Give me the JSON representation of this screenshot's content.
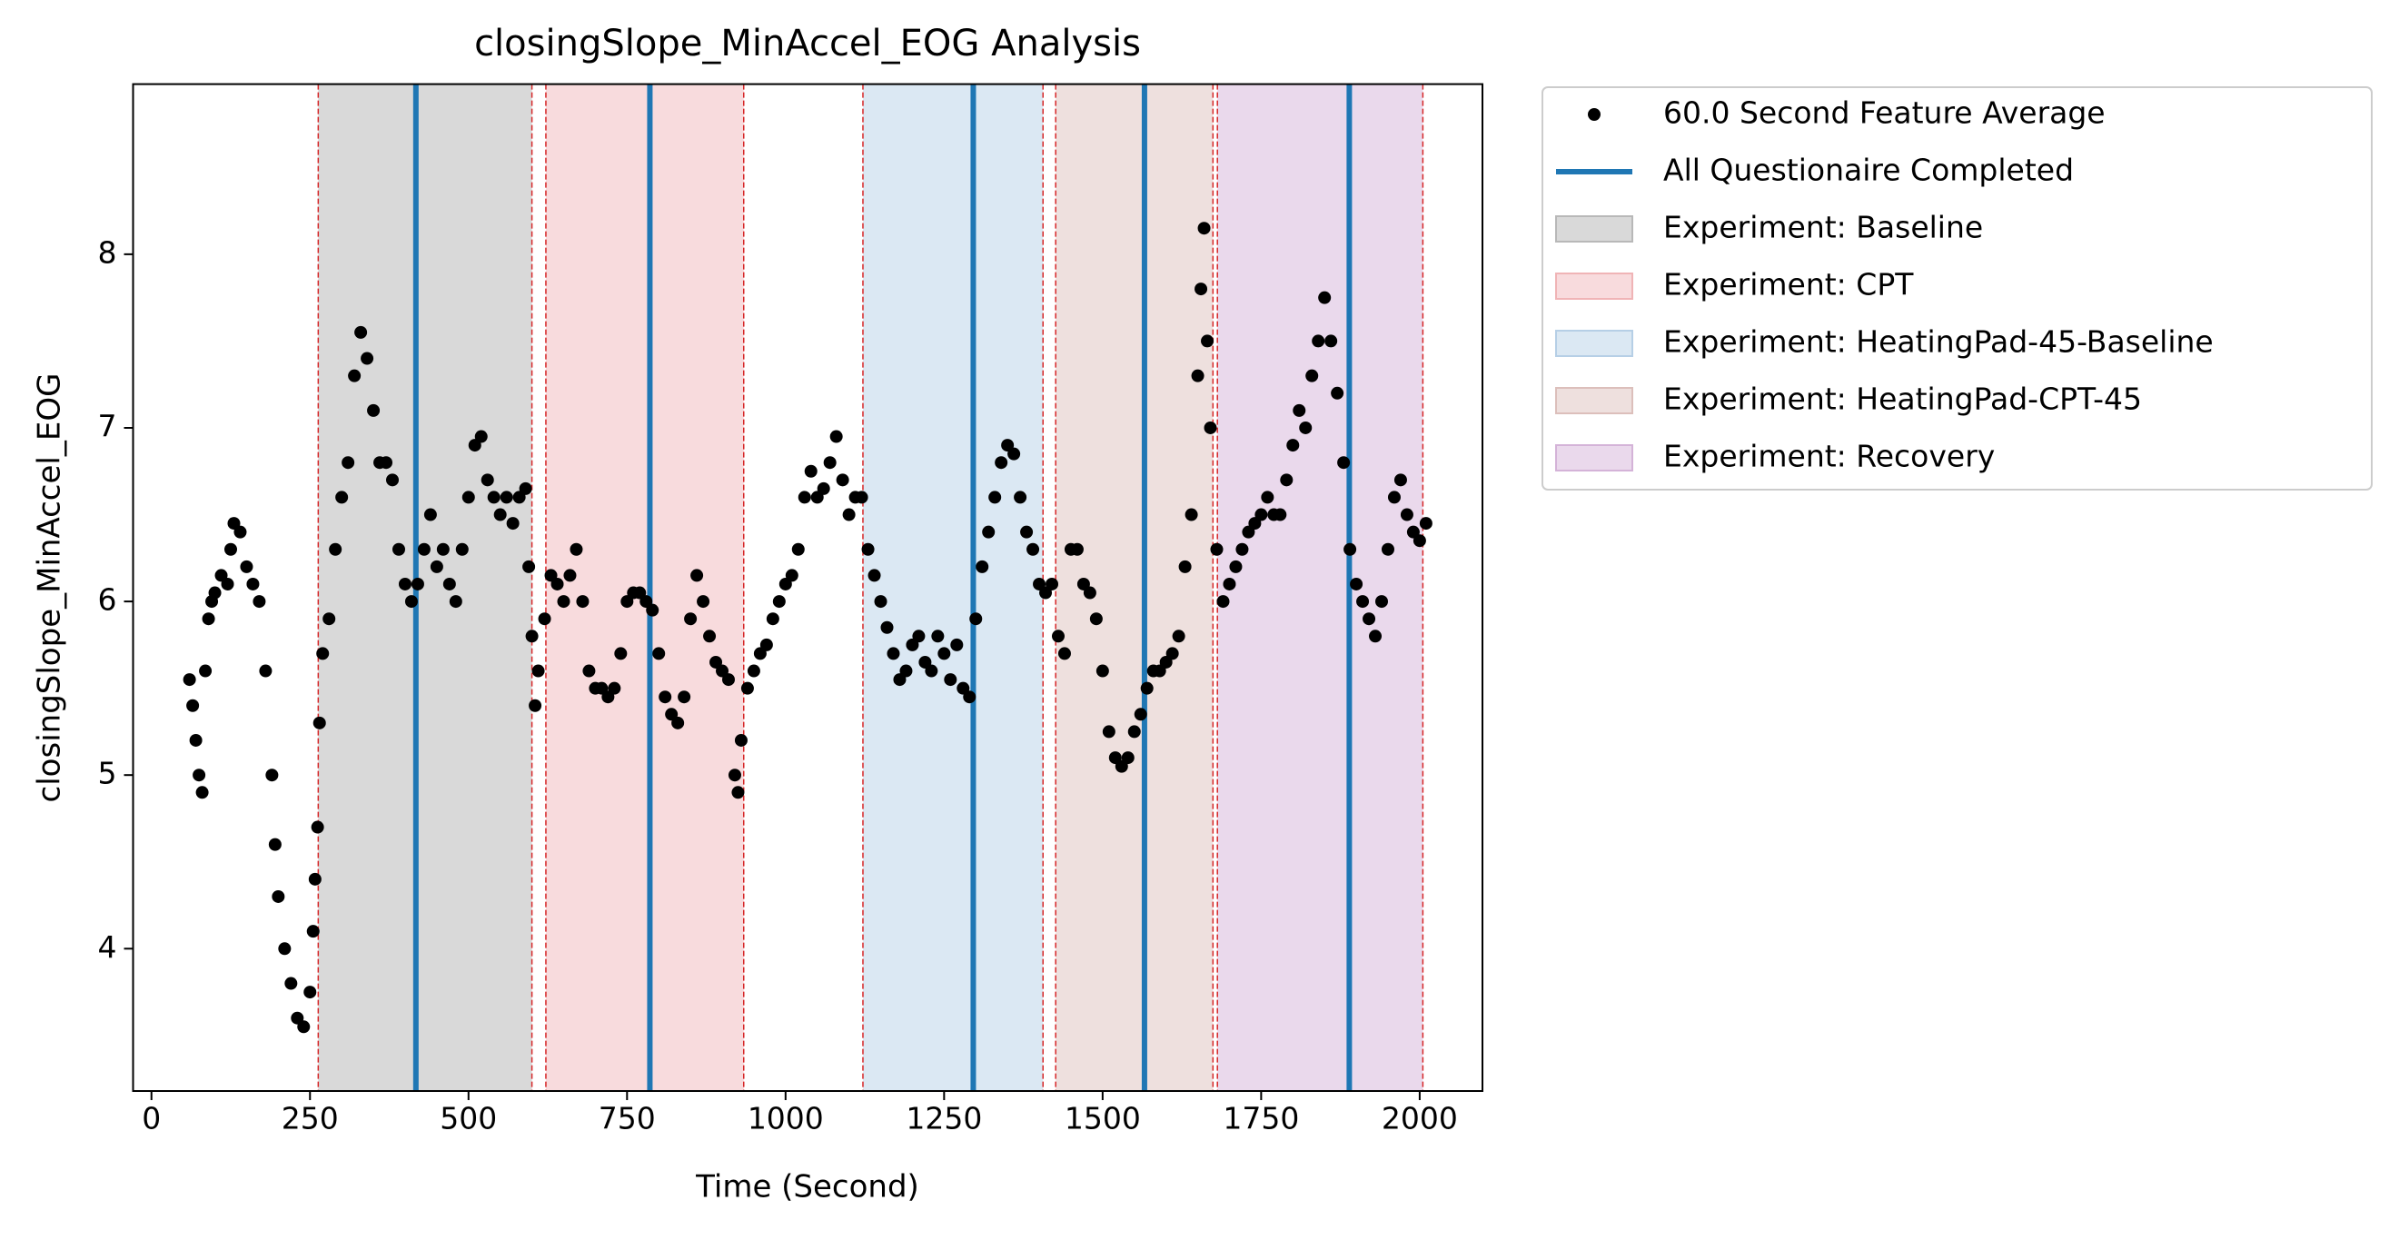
{
  "chart_data": {
    "type": "scatter",
    "title": "closingSlope_MinAccel_EOG Analysis",
    "xlabel": "Time (Second)",
    "ylabel": "closingSlope_MinAccel_EOG",
    "xlim": [
      -29,
      2099
    ],
    "ylim": [
      3.18,
      8.98
    ],
    "xticks": [
      0,
      250,
      500,
      750,
      1000,
      1250,
      1500,
      1750,
      2000
    ],
    "yticks": [
      4,
      5,
      6,
      7,
      8
    ],
    "legend": "outside-upper-right",
    "series": [
      {
        "name": "60.0 Second Feature Average",
        "color": "#000000",
        "x": [
          60,
          65,
          70,
          75,
          80,
          85,
          90,
          95,
          100,
          110,
          120,
          125,
          130,
          140,
          150,
          160,
          170,
          180,
          190,
          195,
          200,
          210,
          220,
          230,
          240,
          250,
          255,
          258,
          262,
          265,
          270,
          280,
          290,
          300,
          310,
          320,
          330,
          340,
          350,
          360,
          370,
          380,
          390,
          400,
          410,
          420,
          430,
          440,
          450,
          460,
          470,
          480,
          490,
          500,
          510,
          520,
          530,
          540,
          550,
          560,
          570,
          580,
          590,
          595,
          600,
          605,
          610,
          620,
          630,
          640,
          650,
          660,
          670,
          680,
          690,
          700,
          710,
          720,
          730,
          740,
          750,
          760,
          770,
          780,
          790,
          800,
          810,
          820,
          830,
          840,
          850,
          860,
          870,
          880,
          890,
          900,
          910,
          920,
          925,
          930,
          940,
          950,
          960,
          970,
          980,
          990,
          1000,
          1010,
          1020,
          1030,
          1040,
          1050,
          1060,
          1070,
          1080,
          1090,
          1100,
          1110,
          1120,
          1130,
          1140,
          1150,
          1160,
          1170,
          1180,
          1190,
          1200,
          1210,
          1220,
          1230,
          1240,
          1250,
          1260,
          1270,
          1280,
          1290,
          1300,
          1310,
          1320,
          1330,
          1340,
          1350,
          1360,
          1370,
          1380,
          1390,
          1400,
          1410,
          1420,
          1430,
          1440,
          1450,
          1460,
          1470,
          1480,
          1490,
          1500,
          1510,
          1520,
          1530,
          1540,
          1550,
          1560,
          1570,
          1580,
          1590,
          1600,
          1610,
          1620,
          1630,
          1640,
          1650,
          1655,
          1660,
          1665,
          1670,
          1680,
          1690,
          1700,
          1710,
          1720,
          1730,
          1740,
          1750,
          1760,
          1770,
          1780,
          1790,
          1800,
          1810,
          1820,
          1830,
          1840,
          1850,
          1860,
          1870,
          1880,
          1890,
          1900,
          1910,
          1920,
          1930,
          1940,
          1950,
          1960,
          1970,
          1980,
          1990,
          2000,
          2010
        ],
        "values": [
          5.55,
          5.4,
          5.2,
          5.0,
          4.9,
          5.6,
          5.9,
          6.0,
          6.05,
          6.15,
          6.1,
          6.3,
          6.45,
          6.4,
          6.2,
          6.1,
          6.0,
          5.6,
          5.0,
          4.6,
          4.3,
          4.0,
          3.8,
          3.6,
          3.55,
          3.75,
          4.1,
          4.4,
          4.7,
          5.3,
          5.7,
          5.9,
          6.3,
          6.6,
          6.8,
          7.3,
          7.55,
          7.4,
          7.1,
          6.8,
          6.8,
          6.7,
          6.3,
          6.1,
          6.0,
          6.1,
          6.3,
          6.5,
          6.2,
          6.3,
          6.1,
          6.0,
          6.3,
          6.6,
          6.9,
          6.95,
          6.7,
          6.6,
          6.5,
          6.6,
          6.45,
          6.6,
          6.65,
          6.2,
          5.8,
          5.4,
          5.6,
          5.9,
          6.15,
          6.1,
          6.0,
          6.15,
          6.3,
          6.0,
          5.6,
          5.5,
          5.5,
          5.45,
          5.5,
          5.7,
          6.0,
          6.05,
          6.05,
          6.0,
          5.95,
          5.7,
          5.45,
          5.35,
          5.3,
          5.45,
          5.9,
          6.15,
          6.0,
          5.8,
          5.65,
          5.6,
          5.55,
          5.0,
          4.9,
          5.2,
          5.5,
          5.6,
          5.7,
          5.75,
          5.9,
          6.0,
          6.1,
          6.15,
          6.3,
          6.6,
          6.75,
          6.6,
          6.65,
          6.8,
          6.95,
          6.7,
          6.5,
          6.6,
          6.6,
          6.3,
          6.15,
          6.0,
          5.85,
          5.7,
          5.55,
          5.6,
          5.75,
          5.8,
          5.65,
          5.6,
          5.8,
          5.7,
          5.55,
          5.75,
          5.5,
          5.45,
          5.9,
          6.2,
          6.4,
          6.6,
          6.8,
          6.9,
          6.85,
          6.6,
          6.4,
          6.3,
          6.1,
          6.05,
          6.1,
          5.8,
          5.7,
          6.3,
          6.3,
          6.1,
          6.05,
          5.9,
          5.6,
          5.25,
          5.1,
          5.05,
          5.1,
          5.25,
          5.35,
          5.5,
          5.6,
          5.6,
          5.65,
          5.7,
          5.8,
          6.2,
          6.5,
          7.3,
          7.8,
          8.15,
          7.5,
          7.0,
          6.3,
          6.0,
          6.1,
          6.2,
          6.3,
          6.4,
          6.45,
          6.5,
          6.6,
          6.5,
          6.5,
          6.7,
          6.9,
          7.1,
          7.0,
          7.3,
          7.5,
          7.75,
          7.5,
          7.2,
          6.8,
          6.3,
          6.1,
          6.0,
          5.9,
          5.8,
          6.0,
          6.3,
          6.6,
          6.7,
          6.5,
          6.4,
          6.35,
          6.45
        ]
      }
    ],
    "vlines": {
      "name": "All Questionaire Completed",
      "color": "#1f77b4",
      "x": [
        417,
        786,
        1296,
        1566,
        1889
      ]
    },
    "spans": [
      {
        "name": "Experiment: Baseline",
        "color": "#d9d9d9",
        "edge": "#b8b8b8",
        "start": 263,
        "end": 600
      },
      {
        "name": "Experiment: CPT",
        "color": "#f8dbdd",
        "edge": "#f0b4b6",
        "start": 622,
        "end": 934
      },
      {
        "name": "Experiment: HeatingPad-45-Baseline",
        "color": "#dbe8f3",
        "edge": "#b6cfe6",
        "start": 1122,
        "end": 1406
      },
      {
        "name": "Experiment: HeatingPad-CPT-45",
        "color": "#eee0de",
        "edge": "#dcbfbb",
        "start": 1426,
        "end": 1674
      },
      {
        "name": "Experiment: Recovery",
        "color": "#ead9ec",
        "edge": "#d4b3d8",
        "start": 1681,
        "end": 2005
      }
    ],
    "span_edge_color": "#d62728"
  }
}
